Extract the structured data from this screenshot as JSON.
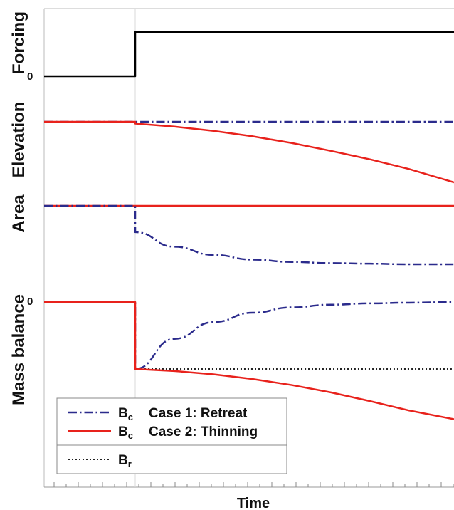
{
  "chart_data": {
    "type": "line",
    "xlabel": "Time",
    "x": [
      0,
      1,
      2,
      3,
      4,
      5,
      6,
      7,
      8,
      9,
      10
    ],
    "panels": [
      {
        "name": "forcing",
        "ylabel": "Forcing",
        "zero_tick": "0",
        "series": [
          {
            "id": "forcing",
            "style": "solid",
            "color": "#000000",
            "values": [
              0,
              0,
              1,
              1,
              1,
              1,
              1,
              1,
              1,
              1,
              1
            ]
          }
        ]
      },
      {
        "name": "elevation",
        "ylabel": "Elevation",
        "series": [
          {
            "id": "case1",
            "style": "dashdot",
            "color": "#2b2b8c",
            "values": [
              0,
              0,
              0,
              0,
              0,
              0,
              0,
              0,
              0,
              0,
              0
            ]
          },
          {
            "id": "case2",
            "style": "solid",
            "color": "#e8221c",
            "values": [
              0,
              0,
              -0.03,
              -0.08,
              -0.15,
              -0.24,
              -0.35,
              -0.48,
              -0.62,
              -0.78,
              -1.0
            ]
          }
        ]
      },
      {
        "name": "area",
        "ylabel": "Area",
        "series": [
          {
            "id": "case2",
            "style": "solid",
            "color": "#e8221c",
            "values": [
              0,
              0,
              0,
              0,
              0,
              0,
              0,
              0,
              0,
              0,
              0
            ]
          },
          {
            "id": "case1",
            "style": "dashdot",
            "color": "#2b2b8c",
            "values": [
              0,
              0,
              -0.45,
              -0.7,
              -0.84,
              -0.92,
              -0.96,
              -0.98,
              -0.99,
              -1.0,
              -1.0
            ]
          }
        ]
      },
      {
        "name": "mass_balance",
        "ylabel": "Mass balance",
        "zero_tick": "0",
        "series": [
          {
            "id": "br",
            "style": "dotted",
            "color": "#222222",
            "values": [
              0,
              0,
              -1,
              -1,
              -1,
              -1,
              -1,
              -1,
              -1,
              -1,
              -1
            ]
          },
          {
            "id": "case1",
            "style": "dashdot",
            "color": "#2b2b8c",
            "values": [
              0,
              0,
              -1,
              -0.55,
              -0.3,
              -0.16,
              -0.08,
              -0.04,
              -0.02,
              -0.01,
              0
            ]
          },
          {
            "id": "case2",
            "style": "solid",
            "color": "#e8221c",
            "values": [
              0,
              0,
              -1,
              -1.03,
              -1.08,
              -1.15,
              -1.24,
              -1.35,
              -1.48,
              -1.62,
              -1.75
            ]
          }
        ]
      }
    ],
    "legend": {
      "placement": "bottom-left",
      "entries": [
        {
          "symbol": "B",
          "sub": "c",
          "text": "Case 1: Retreat",
          "style": "dashdot",
          "color": "#2b2b8c"
        },
        {
          "symbol": "B",
          "sub": "c",
          "text": "Case 2: Thinning",
          "style": "solid",
          "color": "#e8221c"
        },
        {
          "symbol": "B",
          "sub": "r",
          "text": "",
          "style": "dotted",
          "color": "#222222"
        }
      ]
    }
  }
}
